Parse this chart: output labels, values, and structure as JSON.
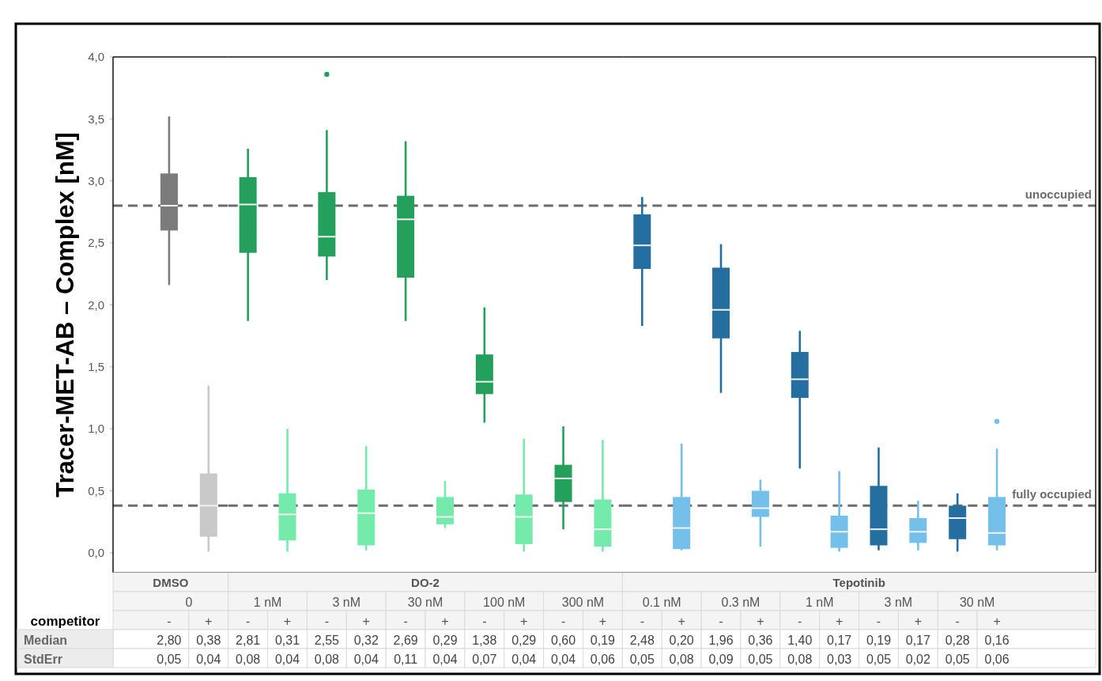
{
  "chart_data": [
    {
      "type": "box",
      "title": "DMSO",
      "ylabel": "Tracer-MET-AB – Complex [nM]",
      "xlabel": "competitor",
      "categories": [
        "0"
      ],
      "series": [
        {
          "name": "-",
          "color": "#7b7b7b",
          "boxes": [
            {
              "low": 2.16,
              "q1": 2.6,
              "median": 2.8,
              "q3": 3.06,
              "high": 3.52
            }
          ],
          "value_labels": [
            "2,80"
          ]
        },
        {
          "name": "+",
          "color": "#c9c9c9",
          "boxes": [
            {
              "low": 0.01,
              "q1": 0.13,
              "median": 0.38,
              "q3": 0.64,
              "high": 1.35
            }
          ],
          "value_labels": [
            "0,38"
          ]
        }
      ],
      "ylim": [
        -0.16,
        4.0
      ],
      "yticks": [
        {
          "value": 0,
          "label": "0,0"
        },
        {
          "value": 0.5,
          "label": "0,5"
        },
        {
          "value": 1,
          "label": "1,0"
        },
        {
          "value": 1.5,
          "label": "1,5"
        },
        {
          "value": 2,
          "label": "2,0"
        },
        {
          "value": 2.5,
          "label": "2,5"
        },
        {
          "value": 3,
          "label": "3,0"
        },
        {
          "value": 3.5,
          "label": "3,5"
        },
        {
          "value": 4,
          "label": "4,0"
        }
      ],
      "ref_lines": [
        {
          "axis": "y",
          "value": 2.8,
          "color": "#6c6c70",
          "line_style": "dashed"
        },
        {
          "axis": "y",
          "value": 0.38,
          "color": "#6c6c70",
          "line_style": "dashed"
        }
      ],
      "annotations": [
        "Median",
        "StdErr",
        "0,05",
        "0,04"
      ]
    },
    {
      "type": "box",
      "title": "DO-2",
      "categories": [
        "1 nM",
        "3 nM",
        "30 nM",
        "100 nM",
        "300 nM"
      ],
      "series": [
        {
          "name": "-",
          "color": "#24a05c",
          "boxes": [
            {
              "low": 1.87,
              "q1": 2.42,
              "median": 2.81,
              "q3": 3.03,
              "high": 3.26
            },
            {
              "low": 2.2,
              "q1": 2.39,
              "median": 2.55,
              "q3": 2.91,
              "high": 3.41,
              "outliers": [
                3.86
              ]
            },
            {
              "low": 1.87,
              "q1": 2.22,
              "median": 2.69,
              "q3": 2.88,
              "high": 3.32
            },
            {
              "low": 1.05,
              "q1": 1.28,
              "median": 1.38,
              "q3": 1.6,
              "high": 1.98
            },
            {
              "low": 0.19,
              "q1": 0.41,
              "median": 0.6,
              "q3": 0.71,
              "high": 1.02
            }
          ],
          "value_labels": [
            "2,81",
            "2,55",
            "2,69",
            "1,38",
            "0,60"
          ]
        },
        {
          "name": "+",
          "color": "#75ebab",
          "boxes": [
            {
              "low": 0.01,
              "q1": 0.1,
              "median": 0.31,
              "q3": 0.48,
              "high": 1.0
            },
            {
              "low": 0.02,
              "q1": 0.06,
              "median": 0.32,
              "q3": 0.51,
              "high": 0.86
            },
            {
              "low": 0.2,
              "q1": 0.23,
              "median": 0.29,
              "q3": 0.45,
              "high": 0.58
            },
            {
              "low": 0.01,
              "q1": 0.07,
              "median": 0.29,
              "q3": 0.47,
              "high": 0.92
            },
            {
              "low": 0.01,
              "q1": 0.05,
              "median": 0.19,
              "q3": 0.43,
              "high": 0.91
            }
          ],
          "value_labels": [
            "0,31",
            "0,32",
            "0,29",
            "0,29",
            "0,19"
          ]
        }
      ],
      "ylim": [
        -0.16,
        4.0
      ],
      "tick_labels": "x",
      "ref_lines": [
        {
          "axis": "y",
          "value": 2.8,
          "color": "#6c6c70",
          "line_style": "dashed"
        },
        {
          "axis": "y",
          "value": 0.38,
          "color": "#6c6c70",
          "line_style": "dashed"
        }
      ],
      "annotations": [
        "0,08",
        "0,04",
        "0,08",
        "0,04",
        "0,11",
        "0,04",
        "0,07",
        "0,04",
        "0,04",
        "0,06"
      ]
    },
    {
      "type": "box",
      "title": "Tepotinib",
      "categories": [
        "0.1 nM",
        "0.3 nM",
        "1 nM",
        "3 nM",
        "30 nM"
      ],
      "series": [
        {
          "name": "-",
          "color": "#246fa0",
          "boxes": [
            {
              "low": 1.83,
              "q1": 2.29,
              "median": 2.48,
              "q3": 2.73,
              "high": 2.87
            },
            {
              "low": 1.29,
              "q1": 1.73,
              "median": 1.96,
              "q3": 2.3,
              "high": 2.49
            },
            {
              "low": 0.68,
              "q1": 1.25,
              "median": 1.4,
              "q3": 1.62,
              "high": 1.79
            },
            {
              "low": 0.02,
              "q1": 0.06,
              "median": 0.19,
              "q3": 0.54,
              "high": 0.85
            },
            {
              "low": 0.01,
              "q1": 0.11,
              "median": 0.28,
              "q3": 0.38,
              "high": 0.48
            }
          ],
          "value_labels": [
            "2,48",
            "1,96",
            "1,40",
            "0,19",
            "0,28"
          ]
        },
        {
          "name": "+",
          "color": "#74c0eb",
          "boxes": [
            {
              "low": 0.02,
              "q1": 0.03,
              "median": 0.2,
              "q3": 0.45,
              "high": 0.88
            },
            {
              "low": 0.05,
              "q1": 0.29,
              "median": 0.36,
              "q3": 0.5,
              "high": 0.59
            },
            {
              "low": 0.01,
              "q1": 0.04,
              "median": 0.17,
              "q3": 0.3,
              "high": 0.66
            },
            {
              "low": 0.02,
              "q1": 0.08,
              "median": 0.17,
              "q3": 0.28,
              "high": 0.42
            },
            {
              "low": 0.02,
              "q1": 0.06,
              "median": 0.16,
              "q3": 0.45,
              "high": 0.84,
              "outliers": [
                1.06
              ]
            }
          ],
          "value_labels": [
            "0,20",
            "0,36",
            "0,17",
            "0,17",
            "0,16"
          ]
        }
      ],
      "ylim": [
        -0.16,
        4.0
      ],
      "tick_labels": "x",
      "ref_lines": [
        {
          "axis": "y",
          "value": 2.8,
          "label": "unoccupied",
          "color": "#6c6c70",
          "line_style": "dashed"
        },
        {
          "axis": "y",
          "value": 0.38,
          "label": "fully occupied",
          "color": "#6c6c70",
          "line_style": "dashed"
        }
      ],
      "annotations": [
        "0,05",
        "0,08",
        "0,09",
        "0,05",
        "0,08",
        "0,03",
        "0,05",
        "0,02",
        "0,05",
        "0,06"
      ]
    }
  ]
}
